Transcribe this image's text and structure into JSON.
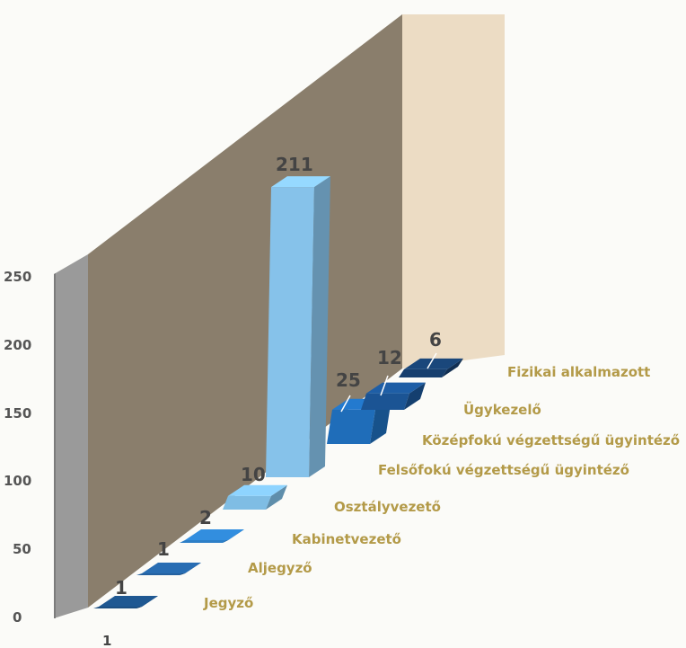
{
  "chart_data": {
    "type": "bar",
    "title": "",
    "xlabel": "",
    "ylabel": "",
    "ylim": [
      0,
      250
    ],
    "y_ticks": [
      "0",
      "50",
      "100",
      "150",
      "200",
      "250"
    ],
    "x_tick": "1",
    "categories": [
      "Jegyző",
      "Aljegyző",
      "Kabinetvezető",
      "Osztályvezető",
      "Felsőfokú végzettségű ügyintéző",
      "Középfokú végzettségű ügyintéző",
      "Ügykezelő",
      "Fizikai alkalmazott"
    ],
    "values": [
      1,
      1,
      2,
      10,
      211,
      25,
      12,
      6
    ],
    "value_labels": [
      "1",
      "1",
      "2",
      "10",
      "211",
      "25",
      "12",
      "6"
    ],
    "series_colors": [
      "#1c4f82",
      "#2461a0",
      "#2d7fc7",
      "#7fbde4",
      "#86c2ea",
      "#1f6db9",
      "#1b5494",
      "#173f6e"
    ],
    "style": "3d-column",
    "grid": false,
    "legend": "none"
  }
}
